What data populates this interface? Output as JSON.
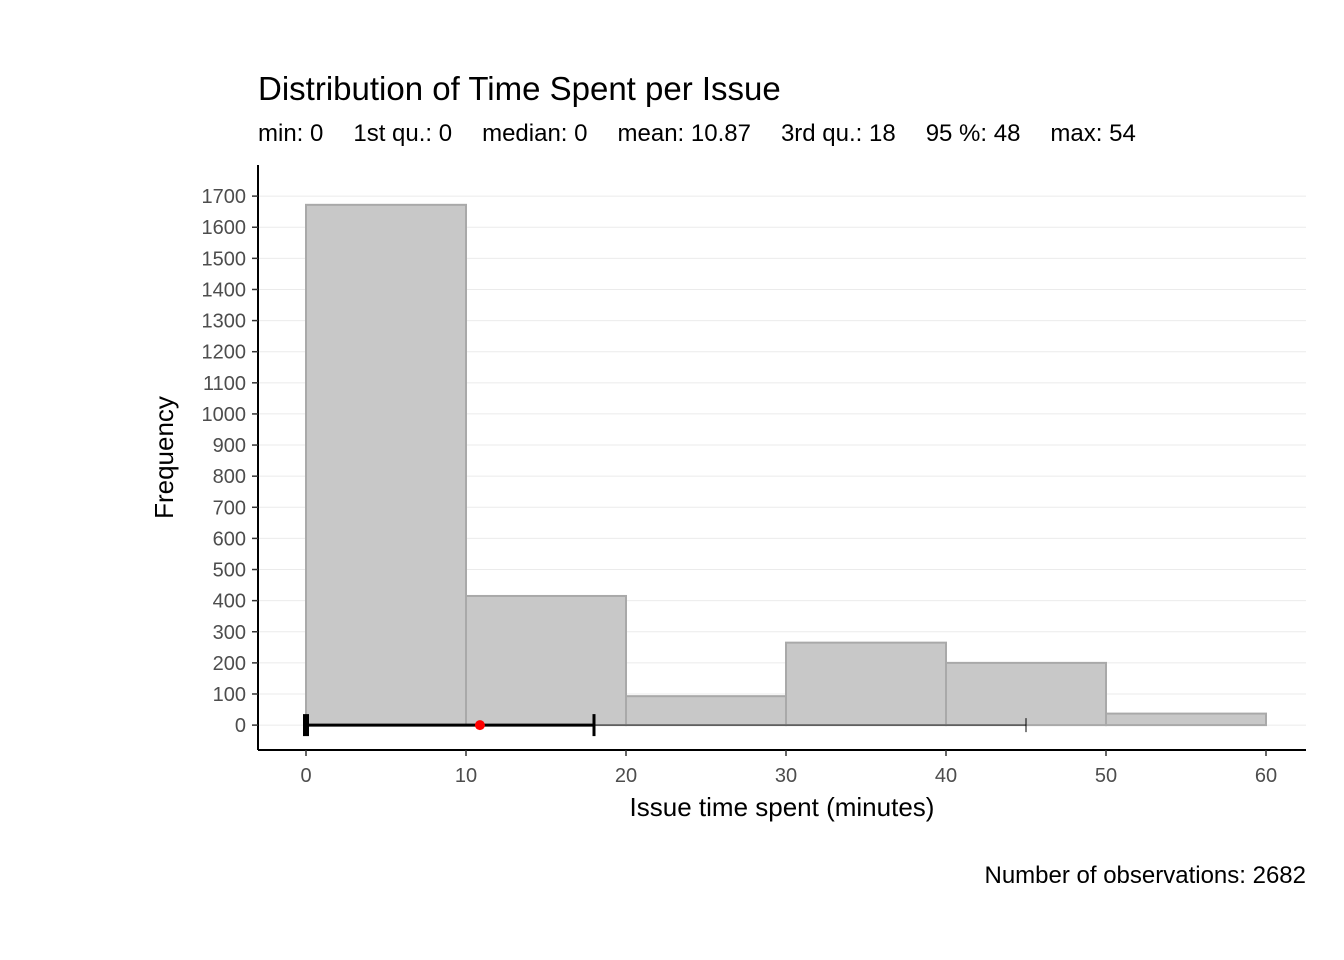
{
  "chart_data": {
    "type": "bar",
    "title": "Distribution of Time Spent per Issue",
    "subtitle_stats": [
      "min: 0",
      "1st qu.: 0",
      "median: 0",
      "mean: 10.87",
      "3rd qu.: 18",
      "95 %: 48",
      "max: 54"
    ],
    "xlabel": "Issue time spent (minutes)",
    "ylabel": "Frequency",
    "caption": "Number of observations: 2682",
    "bins": [
      {
        "from": 0,
        "to": 10,
        "count": 1672
      },
      {
        "from": 10,
        "to": 20,
        "count": 415
      },
      {
        "from": 20,
        "to": 30,
        "count": 93
      },
      {
        "from": 30,
        "to": 40,
        "count": 265
      },
      {
        "from": 40,
        "to": 50,
        "count": 200
      },
      {
        "from": 50,
        "to": 60,
        "count": 37
      }
    ],
    "xlim": [
      -3,
      62.5
    ],
    "ylim": [
      -80,
      1800
    ],
    "x_ticks": [
      0,
      10,
      20,
      30,
      40,
      50,
      60
    ],
    "y_ticks": [
      0,
      100,
      200,
      300,
      400,
      500,
      600,
      700,
      800,
      900,
      1000,
      1100,
      1200,
      1300,
      1400,
      1500,
      1600,
      1700
    ],
    "grid": "horizontal",
    "boxplot": {
      "min": 0,
      "q1": 0,
      "median": 0,
      "mean": 10.87,
      "q3": 18,
      "whisker_end": 45
    },
    "colors": {
      "bar_fill": "#c8c8c8",
      "bar_stroke": "#a9a9a9",
      "mean_point": "#ff0000",
      "grid": "#ebebeb"
    }
  }
}
